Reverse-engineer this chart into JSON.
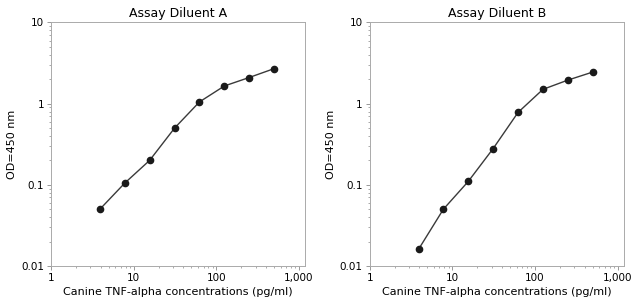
{
  "panel_A": {
    "title": "Assay Diluent A",
    "x": [
      3.9,
      7.8,
      15.6,
      31.25,
      62.5,
      125,
      250,
      500
    ],
    "y": [
      0.05,
      0.105,
      0.2,
      0.5,
      1.05,
      1.65,
      2.1,
      2.7
    ]
  },
  "panel_B": {
    "title": "Assay Diluent B",
    "x": [
      3.9,
      7.8,
      15.6,
      31.25,
      62.5,
      125,
      250,
      500
    ],
    "y": [
      0.016,
      0.05,
      0.11,
      0.28,
      0.78,
      1.5,
      1.95,
      2.45
    ]
  },
  "xlabel": "Canine TNF-alpha concentrations (pg/ml)",
  "ylabel": "OD=450 nm",
  "xlim": [
    2.5,
    1200
  ],
  "ylim": [
    0.01,
    10
  ],
  "xticks": [
    1,
    10,
    100,
    1000
  ],
  "xtick_labels": [
    "1",
    "10",
    "100",
    "1,000"
  ],
  "yticks": [
    0.01,
    0.1,
    1,
    10
  ],
  "ytick_labels": [
    "0.01",
    "0.1",
    "1",
    "10"
  ],
  "line_color": "#3a3a3a",
  "marker_color": "#1a1a1a",
  "marker_size": 4.5,
  "line_width": 1.0,
  "title_fontsize": 9,
  "label_fontsize": 8,
  "tick_fontsize": 7.5,
  "bg_color": "#ffffff"
}
